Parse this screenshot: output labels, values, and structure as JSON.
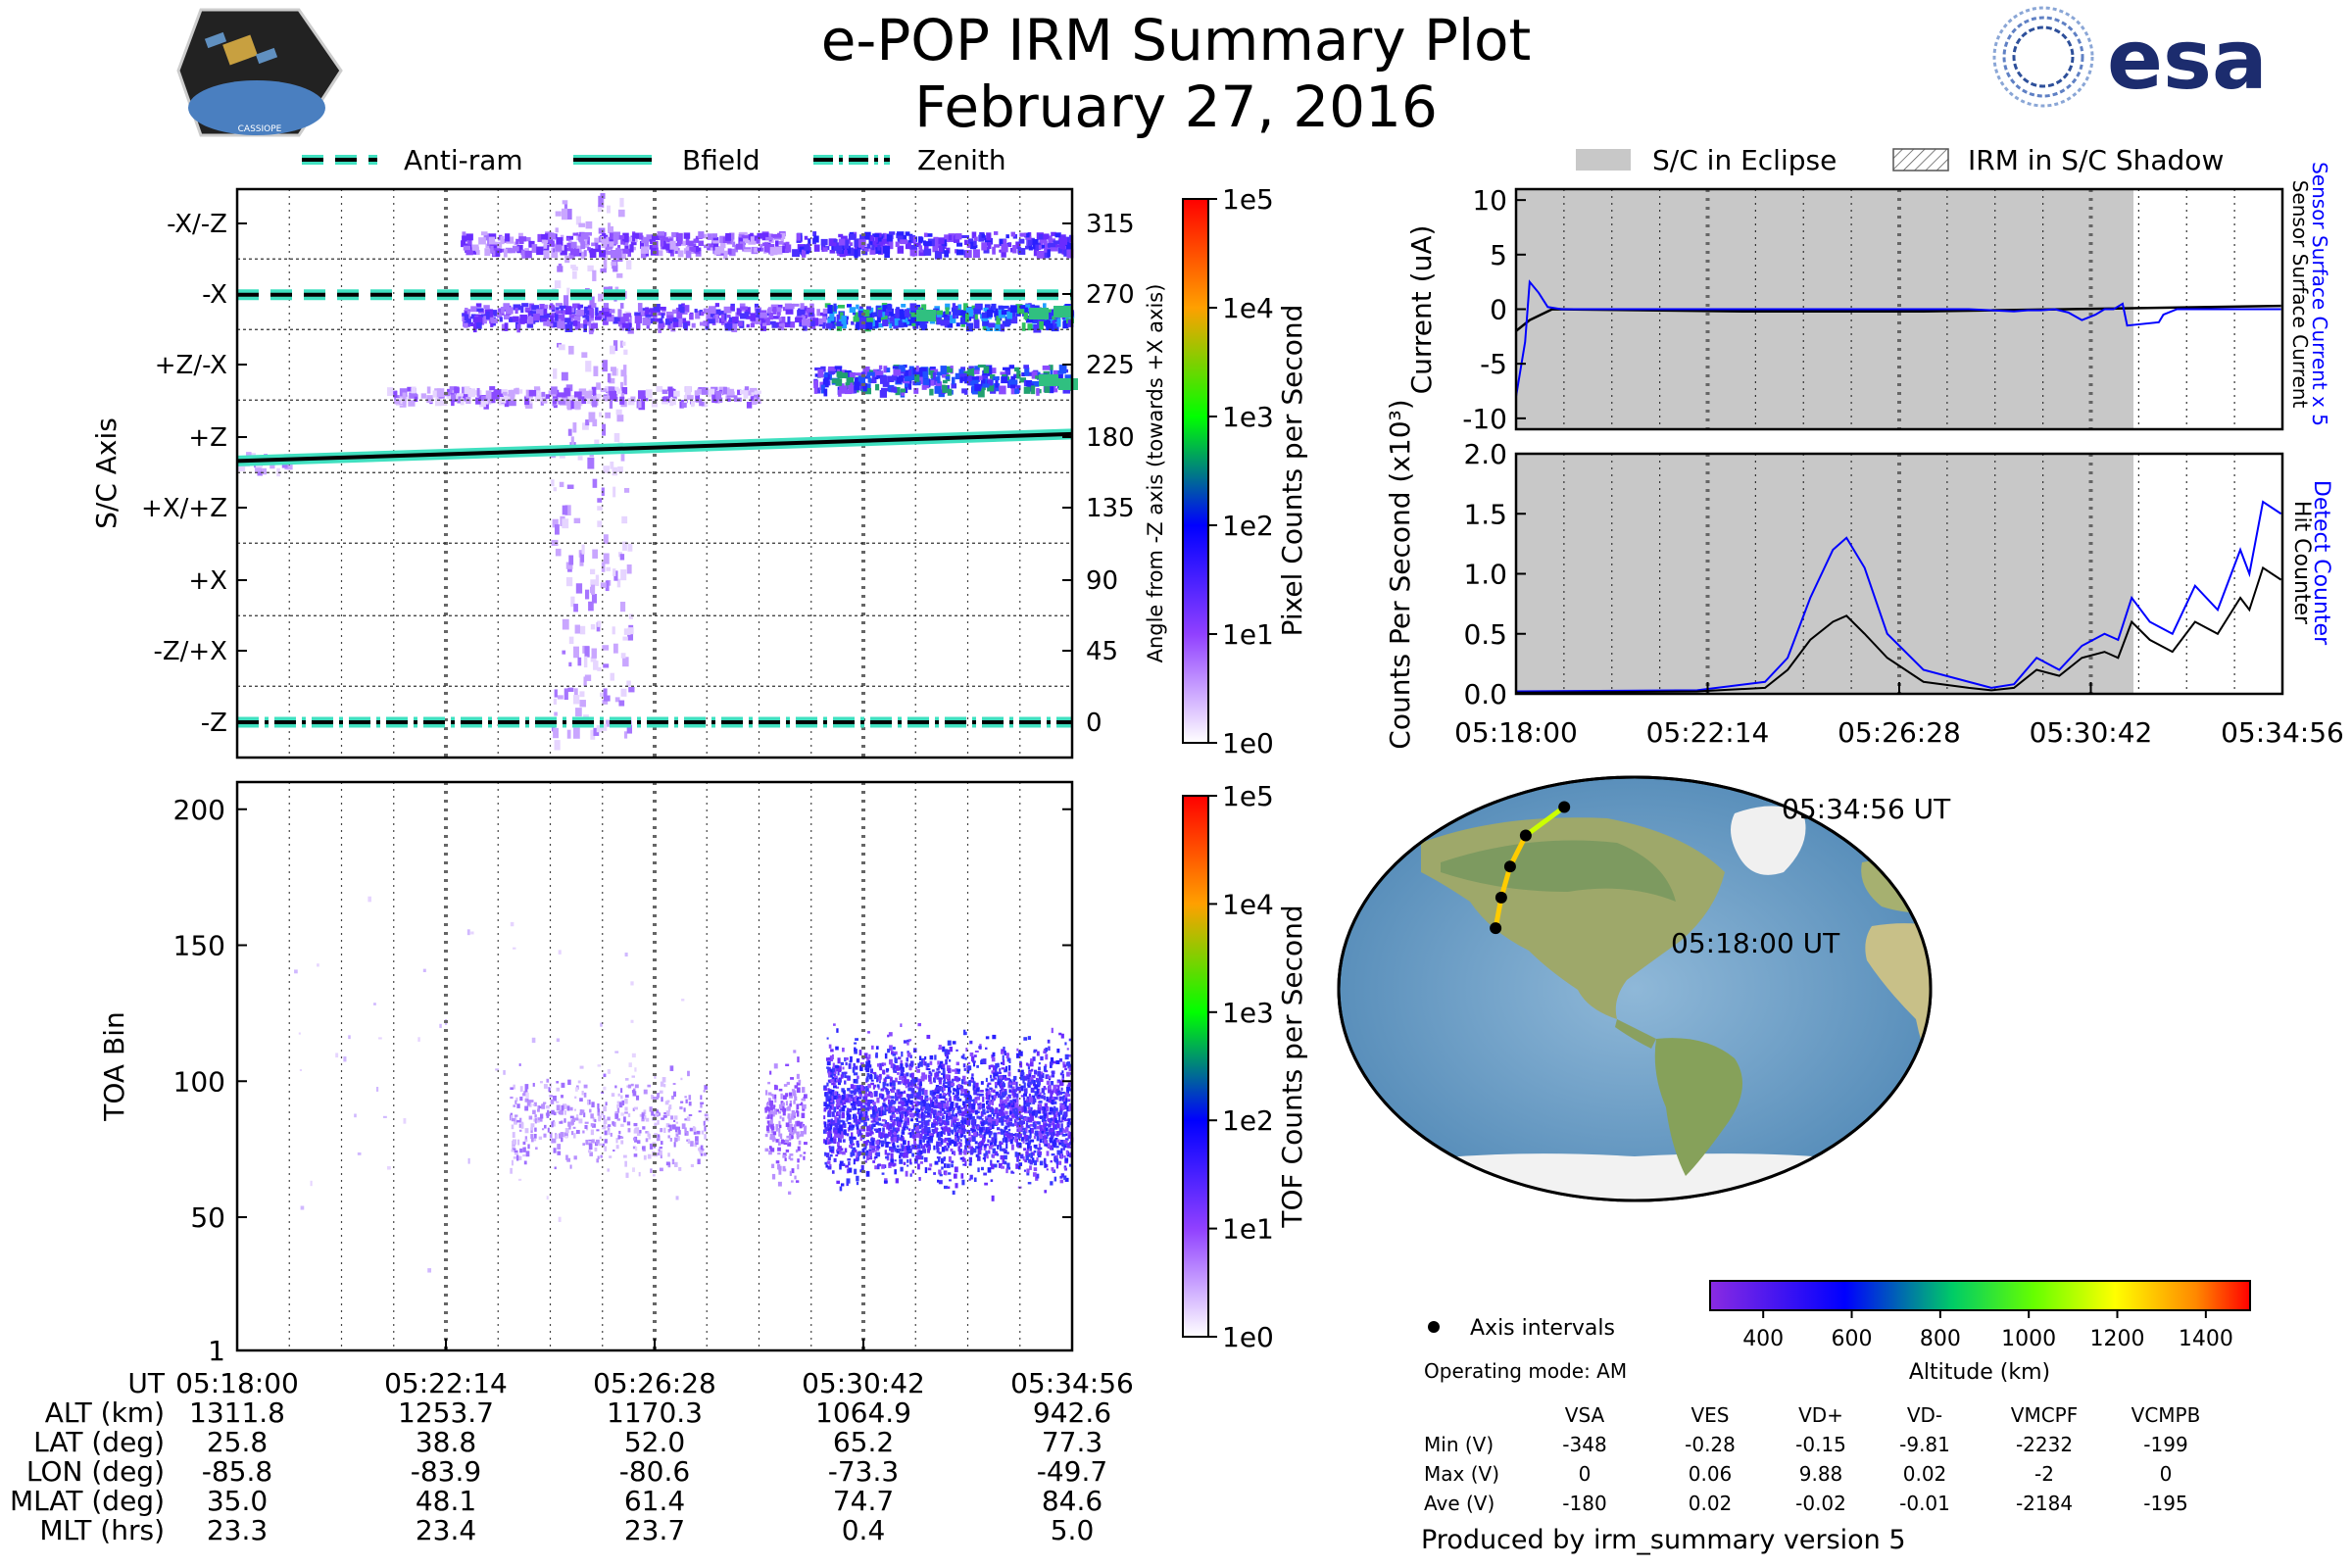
{
  "header": {
    "title": "e-POP IRM Summary Plot",
    "date": "February 27, 2016",
    "left_logo_text": "CASSIOPE",
    "right_logo_text": "esa"
  },
  "colors": {
    "bfield_line": "#000000",
    "line_halo": "#40e0c0",
    "eclipse_fill": "#c8c8c8",
    "sensor_current": "#0000ff",
    "surface_current": "#000000"
  },
  "chart_data": [
    {
      "id": "sc_axis_panel",
      "type": "heatmap",
      "ylabel": "S/C Axis",
      "right_ylabel": "Angle from -Z axis (towards +X axis)",
      "y_categories": [
        "-X/-Z",
        "-X",
        "+Z/-X",
        "+Z",
        "+X/+Z",
        "+X",
        "-Z/+X",
        "-Z"
      ],
      "y_angles": [
        315,
        270,
        225,
        180,
        135,
        90,
        45,
        0
      ],
      "x_ticks": [
        "05:18:00",
        "05:22:14",
        "05:26:28",
        "05:30:42",
        "05:34:56"
      ],
      "legend": [
        "Anti-ram",
        "Bfield",
        "Zenith"
      ],
      "series": [
        {
          "name": "Anti-ram",
          "style": "dashed",
          "angle_start": 270,
          "angle_end": 270
        },
        {
          "name": "Bfield",
          "style": "solid",
          "angle_start": 165,
          "angle_end": 182
        },
        {
          "name": "Zenith",
          "style": "dashdot",
          "angle_start": 0,
          "angle_end": 0
        }
      ],
      "colorbar": {
        "label": "Pixel Counts per Second",
        "ticks": [
          "1e0",
          "1e1",
          "1e2",
          "1e3",
          "1e4",
          "1e5"
        ],
        "scale": "log"
      }
    },
    {
      "id": "toa_panel",
      "type": "heatmap",
      "ylabel": "TOA Bin",
      "ylim": [
        1,
        210
      ],
      "y_ticks": [
        1,
        50,
        100,
        150,
        200
      ],
      "x_ticks": [
        "05:18:00",
        "05:22:14",
        "05:26:28",
        "05:30:42",
        "05:34:56"
      ],
      "colorbar": {
        "label": "TOF Counts per Second",
        "ticks": [
          "1e0",
          "1e1",
          "1e2",
          "1e3",
          "1e4",
          "1e5"
        ],
        "scale": "log"
      }
    },
    {
      "id": "current_panel",
      "type": "line",
      "ylabel": "Current (uA)",
      "ylim": [
        -11,
        11
      ],
      "y_ticks": [
        -10,
        -5,
        0,
        5,
        10
      ],
      "right_label_1": "Sensor Surface Current x 5",
      "right_label_2": "Sensor Surface Current",
      "legend": [
        "S/C in Eclipse",
        "IRM in S/C Shadow"
      ],
      "eclipse_end": "05:31:40",
      "x_min_min": 0,
      "x_max_min": 16.93,
      "series": [
        {
          "name": "Sensor Surface Current x 5",
          "color": "#0000ff",
          "x": [
            0,
            0.2,
            0.3,
            0.5,
            0.7,
            1.0,
            1.5,
            3,
            6,
            10,
            11.0,
            11.3,
            11.6,
            11.9,
            12.2,
            12.5,
            12.8,
            13.0,
            13.2,
            13.4,
            13.5,
            14.2,
            14.3,
            14.6,
            16.9
          ],
          "y": [
            -8,
            -3,
            2.5,
            1.5,
            0.2,
            0,
            0,
            0,
            0,
            0,
            -0.2,
            -0.1,
            -0.1,
            0,
            -0.3,
            -1,
            -0.5,
            0,
            0,
            0.5,
            -1.5,
            -1.2,
            -0.5,
            0,
            0
          ]
        }
      ]
    },
    {
      "id": "counts_panel",
      "type": "line",
      "ylabel": "Counts Per Second (x10³)",
      "ylim": [
        0,
        2.0
      ],
      "y_ticks": [
        0.0,
        0.5,
        1.0,
        1.5,
        2.0
      ],
      "right_label_1": "Detect Counter",
      "right_label_2": "Hit Counter",
      "x_ticks": [
        "05:18:00",
        "05:22:14",
        "05:26:28",
        "05:30:42",
        "05:34:56"
      ],
      "series": [
        {
          "name": "Detect Counter",
          "color": "#0000ff",
          "x": [
            0,
            4,
            5.5,
            6,
            6.5,
            7.0,
            7.3,
            7.7,
            8.2,
            9.0,
            10,
            10.5,
            11.0,
            11.5,
            12.0,
            12.5,
            13.0,
            13.3,
            13.6,
            14.0,
            14.5,
            15.0,
            15.5,
            16.0,
            16.2,
            16.5,
            16.9
          ],
          "y": [
            0.02,
            0.03,
            0.1,
            0.3,
            0.8,
            1.2,
            1.3,
            1.05,
            0.5,
            0.2,
            0.1,
            0.05,
            0.08,
            0.3,
            0.2,
            0.4,
            0.5,
            0.45,
            0.8,
            0.6,
            0.5,
            0.9,
            0.7,
            1.2,
            1.0,
            1.6,
            1.5
          ]
        },
        {
          "name": "Hit Counter",
          "color": "#000000",
          "x": [
            0,
            4,
            5.5,
            6,
            6.5,
            7.0,
            7.3,
            7.7,
            8.2,
            9.0,
            10,
            10.5,
            11.0,
            11.5,
            12.0,
            12.5,
            13.0,
            13.3,
            13.6,
            14.0,
            14.5,
            15.0,
            15.5,
            16.0,
            16.2,
            16.5,
            16.9
          ],
          "y": [
            0.01,
            0.02,
            0.05,
            0.2,
            0.45,
            0.6,
            0.65,
            0.5,
            0.3,
            0.1,
            0.05,
            0.03,
            0.05,
            0.2,
            0.15,
            0.3,
            0.35,
            0.3,
            0.6,
            0.45,
            0.35,
            0.6,
            0.5,
            0.8,
            0.7,
            1.05,
            0.95
          ]
        }
      ]
    },
    {
      "id": "orbit_map",
      "type": "scatter",
      "start_label": "05:18:00 UT",
      "end_label": "05:34:56 UT",
      "track_lon": [
        -85.8,
        -83.9,
        -80.6,
        -73.3,
        -49.7
      ],
      "track_lat": [
        25.8,
        38.8,
        52.0,
        65.2,
        77.3
      ],
      "altitude_km": [
        1311.8,
        1253.7,
        1170.3,
        1064.9,
        942.6
      ],
      "colorbar": {
        "label": "Altitude (km)",
        "ticks": [
          400,
          600,
          800,
          1000,
          1200,
          1400
        ],
        "range": [
          280,
          1500
        ]
      }
    }
  ],
  "ephemeris": {
    "rows": [
      {
        "label": "UT",
        "values": [
          "05:18:00",
          "05:22:14",
          "05:26:28",
          "05:30:42",
          "05:34:56"
        ]
      },
      {
        "label": "ALT (km)",
        "values": [
          "1311.8",
          "1253.7",
          "1170.3",
          "1064.9",
          "942.6"
        ]
      },
      {
        "label": "LAT (deg)",
        "values": [
          "25.8",
          "38.8",
          "52.0",
          "65.2",
          "77.3"
        ]
      },
      {
        "label": "LON (deg)",
        "values": [
          "-85.8",
          "-83.9",
          "-80.6",
          "-73.3",
          "-49.7"
        ]
      },
      {
        "label": "MLAT (deg)",
        "values": [
          "35.0",
          "48.1",
          "61.4",
          "74.7",
          "84.6"
        ]
      },
      {
        "label": "MLT (hrs)",
        "values": [
          "23.3",
          "23.4",
          "23.7",
          "0.4",
          "5.0"
        ]
      }
    ]
  },
  "info": {
    "axis_intervals": "Axis intervals",
    "operating_mode": "Operating mode: AM",
    "columns": [
      "VSA",
      "VES",
      "VD+",
      "VD-",
      "VMCPF",
      "VCMPB"
    ],
    "rows": [
      {
        "label": "Min (V)",
        "values": [
          "-348",
          "-0.28",
          "-0.15",
          "-9.81",
          "-2232",
          "-199"
        ]
      },
      {
        "label": "Max (V)",
        "values": [
          "0",
          "0.06",
          "9.88",
          "0.02",
          "-2",
          "0"
        ]
      },
      {
        "label": "Ave (V)",
        "values": [
          "-180",
          "0.02",
          "-0.02",
          "-0.01",
          "-2184",
          "-195"
        ]
      }
    ],
    "footer": "Produced by irm_summary version 5"
  }
}
